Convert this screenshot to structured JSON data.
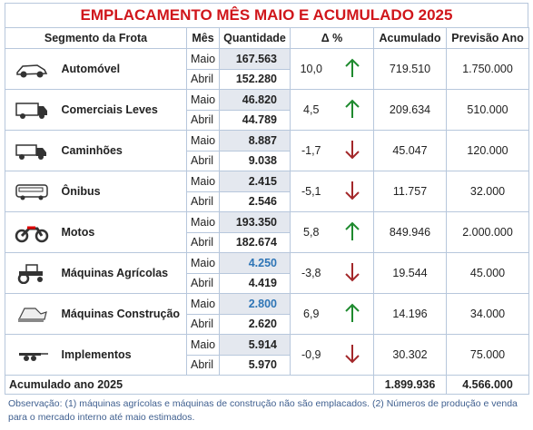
{
  "title": "EMPLACAMENTO MÊS MAIO E ACUMULADO 2025",
  "headers": [
    "Segmento da Frota",
    "Mês",
    "Quantidade",
    "Δ %",
    "Acumulado",
    "Previsão Ano"
  ],
  "rows": [
    {
      "segment": "Automóvel",
      "months": [
        "Maio",
        "Abril"
      ],
      "quantities": [
        "167.563",
        "152.280"
      ],
      "delta": "10,0",
      "trend": "up",
      "accumulated": "719.510",
      "forecast": "1.750.000"
    },
    {
      "segment": "Comerciais Leves",
      "months": [
        "Maio",
        "Abril"
      ],
      "quantities": [
        "46.820",
        "44.789"
      ],
      "delta": "4,5",
      "trend": "up",
      "accumulated": "209.634",
      "forecast": "510.000"
    },
    {
      "segment": "Caminhões",
      "months": [
        "Maio",
        "Abril"
      ],
      "quantities": [
        "8.887",
        "9.038"
      ],
      "delta": "-1,7",
      "trend": "down",
      "accumulated": "45.047",
      "forecast": "120.000"
    },
    {
      "segment": "Ônibus",
      "months": [
        "Maio",
        "Abril"
      ],
      "quantities": [
        "2.415",
        "2.546"
      ],
      "delta": "-5,1",
      "trend": "down",
      "accumulated": "11.757",
      "forecast": "32.000"
    },
    {
      "segment": "Motos",
      "months": [
        "Maio",
        "Abril"
      ],
      "quantities": [
        "193.350",
        "182.674"
      ],
      "delta": "5,8",
      "trend": "up",
      "accumulated": "849.946",
      "forecast": "2.000.000"
    },
    {
      "segment": "Máquinas Agrícolas",
      "months": [
        "Maio",
        "Abril"
      ],
      "quantities": [
        "4.250",
        "4.419"
      ],
      "delta": "-3,8",
      "trend": "down",
      "accumulated": "19.544",
      "forecast": "45.000",
      "highlight": true
    },
    {
      "segment": "Máquinas Construção",
      "months": [
        "Maio",
        "Abril"
      ],
      "quantities": [
        "2.800",
        "2.620"
      ],
      "delta": "6,9",
      "trend": "up",
      "accumulated": "14.196",
      "forecast": "34.000",
      "highlight": true
    },
    {
      "segment": "Implementos",
      "months": [
        "Maio",
        "Abril"
      ],
      "quantities": [
        "5.914",
        "5.970"
      ],
      "delta": "-0,9",
      "trend": "down",
      "accumulated": "30.302",
      "forecast": "75.000"
    }
  ],
  "total": {
    "label": "Acumulado ano 2025",
    "accumulated": "1.899.936",
    "forecast": "4.566.000"
  },
  "note": "Observação: (1) máquinas agrícolas e máquinas de construção não são emplacados. (2) Números de produção e venda para o mercado interno até maio estimados."
}
